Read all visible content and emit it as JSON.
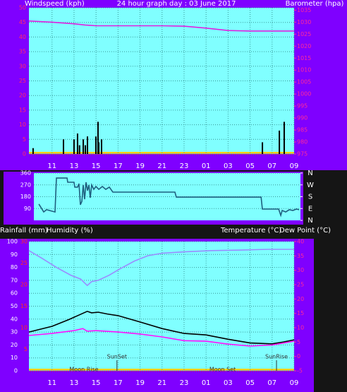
{
  "chart_data": [
    {
      "type": "bar",
      "title": "24 hour graph day : 03 June 2017",
      "xlim": [
        8.9,
        33
      ],
      "xticks": [
        11,
        13,
        15,
        17,
        19,
        21,
        23,
        {
          "value": 25,
          "label": "01"
        },
        {
          "value": 27,
          "label": "03"
        },
        {
          "value": 29,
          "label": "05"
        },
        {
          "value": 31,
          "label": "07"
        },
        {
          "value": 33,
          "label": "09"
        }
      ],
      "ylim": [
        0,
        50
      ],
      "yticks": [
        0,
        5,
        10,
        15,
        20,
        25,
        30,
        35,
        40,
        45,
        50
      ],
      "y2lim": [
        975,
        1036
      ],
      "y2ticks": [
        975,
        980,
        985,
        990,
        995,
        1000,
        1005,
        1010,
        1015,
        1020,
        1025,
        1030,
        1035
      ],
      "grid": true,
      "series": [
        {
          "name": "Windspeed (kph)",
          "color": "#000000",
          "x": [
            9.28,
            12.04,
            13.0,
            13.32,
            13.5,
            13.84,
            14.03,
            14.22,
            14.99,
            15.18,
            15.25,
            15.5,
            30.12,
            31.66,
            32.1
          ],
          "values": [
            2,
            5,
            5,
            7,
            3,
            5,
            3,
            6,
            6,
            11,
            4,
            5,
            4,
            8,
            11
          ]
        },
        {
          "name": "Barometer (hpa)",
          "type": "line",
          "axis": "y2",
          "color": "#e020e0",
          "x": [
            8.9,
            11,
            13,
            14,
            15,
            17,
            21,
            23,
            25,
            27,
            29,
            31,
            33
          ],
          "values": [
            1030.5,
            1030,
            1029.3,
            1028.8,
            1028.5,
            1028.5,
            1028.5,
            1028.3,
            1027.5,
            1026.5,
            1026.3,
            1026.3,
            1026.3
          ]
        }
      ]
    },
    {
      "type": "line",
      "xlim": [
        8.9,
        33
      ],
      "ylim": [
        0,
        360
      ],
      "yticks": [
        90,
        180,
        270,
        360
      ],
      "y2lim": [
        0,
        360
      ],
      "y2ticks": [
        {
          "value": 360,
          "label": "N"
        },
        {
          "value": 270,
          "label": "W"
        },
        {
          "value": 180,
          "label": "S"
        },
        {
          "value": 90,
          "label": "E"
        },
        {
          "value": 0,
          "label": "N"
        }
      ],
      "grid": true,
      "series": [
        {
          "color": "#1f5f7f",
          "x": [
            9.35,
            9.79,
            10.05,
            10.81,
            10.94,
            11.9,
            11.96,
            12.53,
            12.6,
            12.85,
            12.98,
            13.11,
            13.24,
            13.36,
            13.49,
            13.62,
            13.75,
            13.87,
            14.0,
            14.13,
            14.32,
            14.51,
            14.77,
            15.09,
            15.4,
            15.72,
            16.04,
            21.65,
            21.78,
            29.44,
            29.56,
            31.03,
            31.22,
            31.35,
            31.67,
            31.99,
            32.31,
            32.63,
            32.88
          ],
          "values": [
            124,
            64,
            81,
            64,
            322,
            322,
            290,
            290,
            253,
            253,
            279,
            118,
            145,
            269,
            161,
            290,
            226,
            269,
            172,
            269,
            236,
            258,
            236,
            258,
            236,
            253,
            215,
            215,
            177,
            177,
            86,
            86,
            38,
            75,
            64,
            81,
            75,
            86,
            81
          ]
        }
      ]
    },
    {
      "type": "line",
      "xlim": [
        8.9,
        33
      ],
      "xticks": [
        11,
        13,
        15,
        17,
        19,
        21,
        23,
        {
          "value": 25,
          "label": "01"
        },
        {
          "value": 27,
          "label": "03"
        },
        {
          "value": 29,
          "label": "05"
        },
        {
          "value": 31,
          "label": "07"
        },
        {
          "value": 33,
          "label": "09"
        }
      ],
      "ylim": [
        0,
        100
      ],
      "yticks": [
        0,
        10,
        20,
        30,
        40,
        50,
        60,
        70,
        80,
        90,
        100
      ],
      "y2lim": [
        -5,
        40
      ],
      "y2ticks": [
        -5,
        0,
        5,
        10,
        15,
        20,
        25,
        30,
        35,
        40
      ],
      "y3label": "Rainfall (mm)",
      "y3lim": [
        0,
        30
      ],
      "y3ticks": [
        5,
        10,
        15,
        20,
        25,
        30
      ],
      "grid": true,
      "series": [
        {
          "name": "Humidity (%)",
          "color": "#9a8cff",
          "x": [
            8.9,
            10.1,
            11.4,
            12.7,
            13.6,
            14.2,
            14.6,
            15.2,
            16.2,
            17.2,
            18.5,
            19.7,
            21.0,
            23.0,
            25.5,
            28.1,
            30.6,
            33
          ],
          "values": [
            93,
            87,
            80,
            74,
            71,
            66,
            69,
            70,
            74,
            79,
            85,
            89,
            91,
            92,
            93,
            93.4,
            94,
            94
          ]
        },
        {
          "name": "Temperature (°C)",
          "axis": "y2",
          "color": "#000000",
          "x": [
            8.9,
            11,
            12.5,
            13.5,
            14.2,
            14.6,
            15.2,
            16,
            17,
            19,
            21,
            23,
            25,
            27,
            29,
            31,
            32,
            33
          ],
          "values": [
            8.5,
            10.5,
            12.8,
            14.5,
            15.7,
            15.2,
            15.4,
            14.8,
            14.2,
            12,
            9.7,
            8,
            7.5,
            6,
            4.7,
            4.4,
            5,
            5.8
          ]
        },
        {
          "name": "Dew Point (°C)",
          "axis": "y2",
          "color": "#ff10ff",
          "x": [
            8.9,
            11,
            13,
            13.8,
            14.2,
            15,
            17,
            19,
            21,
            23,
            25,
            27,
            29,
            31,
            33
          ],
          "values": [
            7.3,
            8,
            9,
            9.7,
            8.8,
            9,
            8.5,
            7.8,
            6.8,
            5.5,
            5.3,
            4.3,
            3.6,
            4,
            5.3
          ]
        }
      ],
      "annotations": [
        {
          "text": "SunSet",
          "x": 16.9
        },
        {
          "text": "SunRise",
          "x": 31.4
        },
        {
          "text": "Moon Rise",
          "x": 13.9
        },
        {
          "text": "Moon Set",
          "x": 26.5
        }
      ]
    }
  ]
}
